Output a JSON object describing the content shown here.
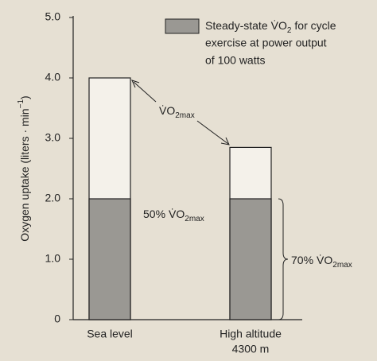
{
  "chart_data": {
    "type": "bar",
    "y_label": {
      "text": "Oxygen uptake (liters · min",
      "sup": "−1",
      "end": ")"
    },
    "categories": [
      [
        "Sea level"
      ],
      [
        "High altitude",
        "4300 m"
      ]
    ],
    "series": [
      {
        "name": {
          "main": "V̇O",
          "sub": "2max"
        },
        "color": "#f4f1ea",
        "values": [
          4.0,
          2.85
        ]
      },
      {
        "name": {
          "text": "Steady-state",
          "main": "V̇O",
          "sub": "2",
          "after": "for cycle",
          "lines": [
            "exercise at power output",
            "of 100 watts"
          ]
        },
        "color": "#9a9893",
        "values": [
          2.0,
          2.0
        ]
      }
    ],
    "annotations": [
      {
        "text": "50%",
        "main": "V̇O",
        "sub": "2max"
      },
      {
        "text": "70%",
        "main": "V̇O",
        "sub": "2max"
      }
    ],
    "ylim": [
      0,
      5
    ],
    "yticks": [
      0,
      {
        "value": 1,
        "label": "1.0"
      },
      {
        "value": 2,
        "label": "2.0"
      },
      {
        "value": 3,
        "label": "3.0"
      },
      {
        "value": 4,
        "label": "4.0"
      },
      {
        "value": 5,
        "label": "5.0"
      }
    ]
  }
}
